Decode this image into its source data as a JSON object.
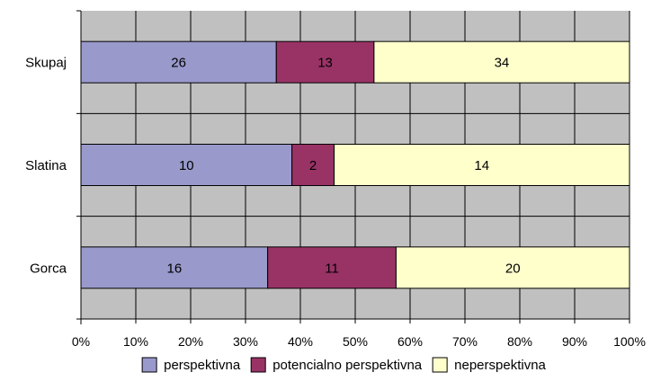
{
  "chart_data": {
    "type": "bar",
    "orientation": "horizontal",
    "stacking": "percent",
    "categories": [
      "Skupaj",
      "Slatina",
      "Gorca"
    ],
    "series": [
      {
        "name": "perspektivna",
        "values": [
          26,
          10,
          16
        ],
        "color": "#9999cc"
      },
      {
        "name": "potencialno perspektivna",
        "values": [
          13,
          2,
          11
        ],
        "color": "#993366"
      },
      {
        "name": "neperspektivna",
        "values": [
          34,
          14,
          20
        ],
        "color": "#ffffcc"
      }
    ],
    "xlim": [
      0,
      100
    ],
    "x_ticks": [
      "0%",
      "10%",
      "20%",
      "30%",
      "40%",
      "50%",
      "60%",
      "70%",
      "80%",
      "90%",
      "100%"
    ],
    "grid": true,
    "plot_background": "#c0c0c0",
    "legend_position": "bottom",
    "title": "",
    "xlabel": "",
    "ylabel": ""
  }
}
